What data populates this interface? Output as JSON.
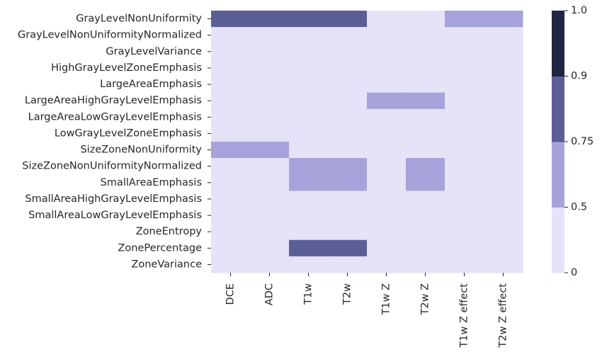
{
  "chart_data": {
    "type": "heatmap",
    "rows": [
      "GrayLevelNonUniformity",
      "GrayLevelNonUniformityNormalized",
      "GrayLevelVariance",
      "HighGrayLevelZoneEmphasis",
      "LargeAreaEmphasis",
      "LargeAreaHighGrayLevelEmphasis",
      "LargeAreaLowGrayLevelEmphasis",
      "LowGrayLevelZoneEmphasis",
      "SizeZoneNonUniformity",
      "SizeZoneNonUniformityNormalized",
      "SmallAreaEmphasis",
      "SmallAreaHighGrayLevelEmphasis",
      "SmallAreaLowGrayLevelEmphasis",
      "ZoneEntropy",
      "ZonePercentage",
      "ZoneVariance"
    ],
    "columns": [
      "DCE",
      "ADC",
      "T1w",
      "T2w",
      "T1w Z",
      "T2w Z",
      "T1w Z effect",
      "T2w Z effect"
    ],
    "values": [
      [
        0.75,
        0.75,
        0.75,
        0.75,
        0,
        0,
        0.5,
        0.5
      ],
      [
        0,
        0,
        0,
        0,
        0,
        0,
        0,
        0
      ],
      [
        0,
        0,
        0,
        0,
        0,
        0,
        0,
        0
      ],
      [
        0,
        0,
        0,
        0,
        0,
        0,
        0,
        0
      ],
      [
        0,
        0,
        0,
        0,
        0,
        0,
        0,
        0
      ],
      [
        0,
        0,
        0,
        0,
        0.5,
        0.5,
        0,
        0
      ],
      [
        0,
        0,
        0,
        0,
        0,
        0,
        0,
        0
      ],
      [
        0,
        0,
        0,
        0,
        0,
        0,
        0,
        0
      ],
      [
        0.5,
        0.5,
        0,
        0,
        0,
        0,
        0,
        0
      ],
      [
        0,
        0,
        0.5,
        0.5,
        0,
        0.5,
        0,
        0
      ],
      [
        0,
        0,
        0.5,
        0.5,
        0,
        0.5,
        0,
        0
      ],
      [
        0,
        0,
        0,
        0,
        0,
        0,
        0,
        0
      ],
      [
        0,
        0,
        0,
        0,
        0,
        0,
        0,
        0
      ],
      [
        0,
        0,
        0,
        0,
        0,
        0,
        0,
        0
      ],
      [
        0,
        0,
        0.75,
        0.75,
        0,
        0,
        0,
        0
      ],
      [
        0,
        0,
        0,
        0,
        0,
        0,
        0,
        0
      ]
    ],
    "colorbar": {
      "bounds": [
        0,
        0.5,
        0.75,
        0.9,
        1.0
      ],
      "tick_labels": [
        "0",
        "0.5",
        "0.75",
        "0.9",
        "1.0"
      ],
      "colors": [
        "#e6e2f8",
        "#a5a3d9",
        "#5b5e95",
        "#1f2641"
      ]
    },
    "title": "",
    "xlabel": "",
    "ylabel": ""
  }
}
